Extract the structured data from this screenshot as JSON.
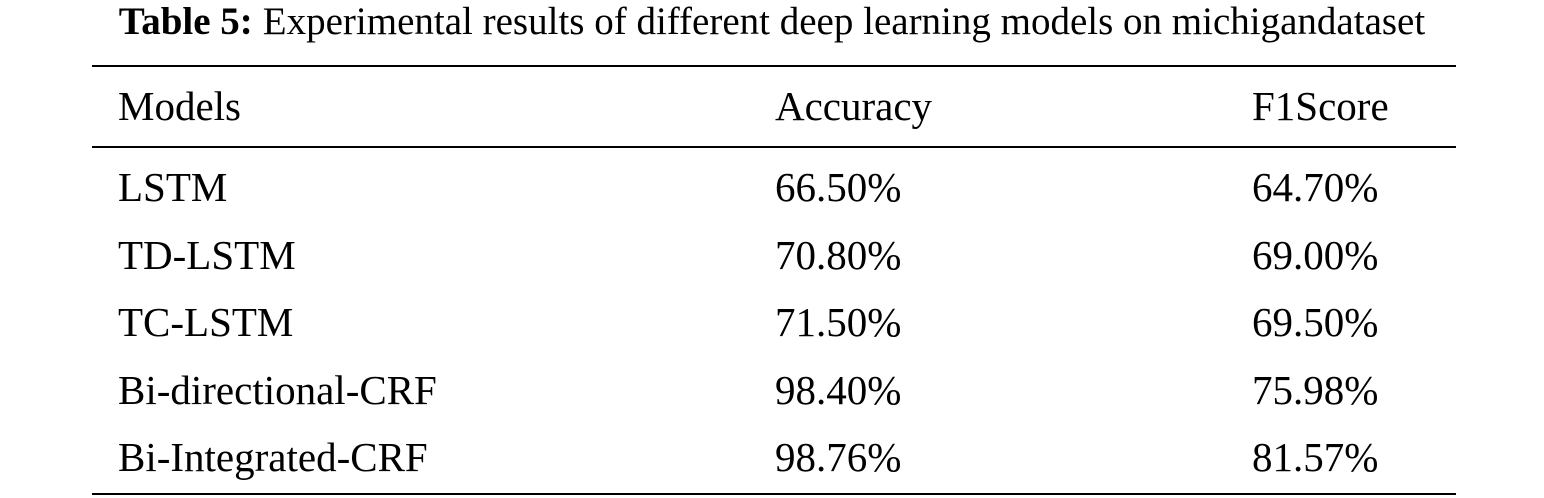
{
  "caption": {
    "label": "Table 5:",
    "text": "Experimental results of different deep learning models on michigandataset"
  },
  "table": {
    "header": [
      "Models",
      "Accuracy",
      "F1Score"
    ],
    "rows": [
      [
        "LSTM",
        "66.50%",
        "64.70%"
      ],
      [
        "TD-LSTM",
        "70.80%",
        "69.00%"
      ],
      [
        "TC-LSTM",
        "71.50%",
        "69.50%"
      ],
      [
        "Bi-directional-CRF",
        "98.40%",
        "75.98%"
      ],
      [
        "Bi-Integrated-CRF",
        "98.76%",
        "81.57%"
      ]
    ]
  }
}
